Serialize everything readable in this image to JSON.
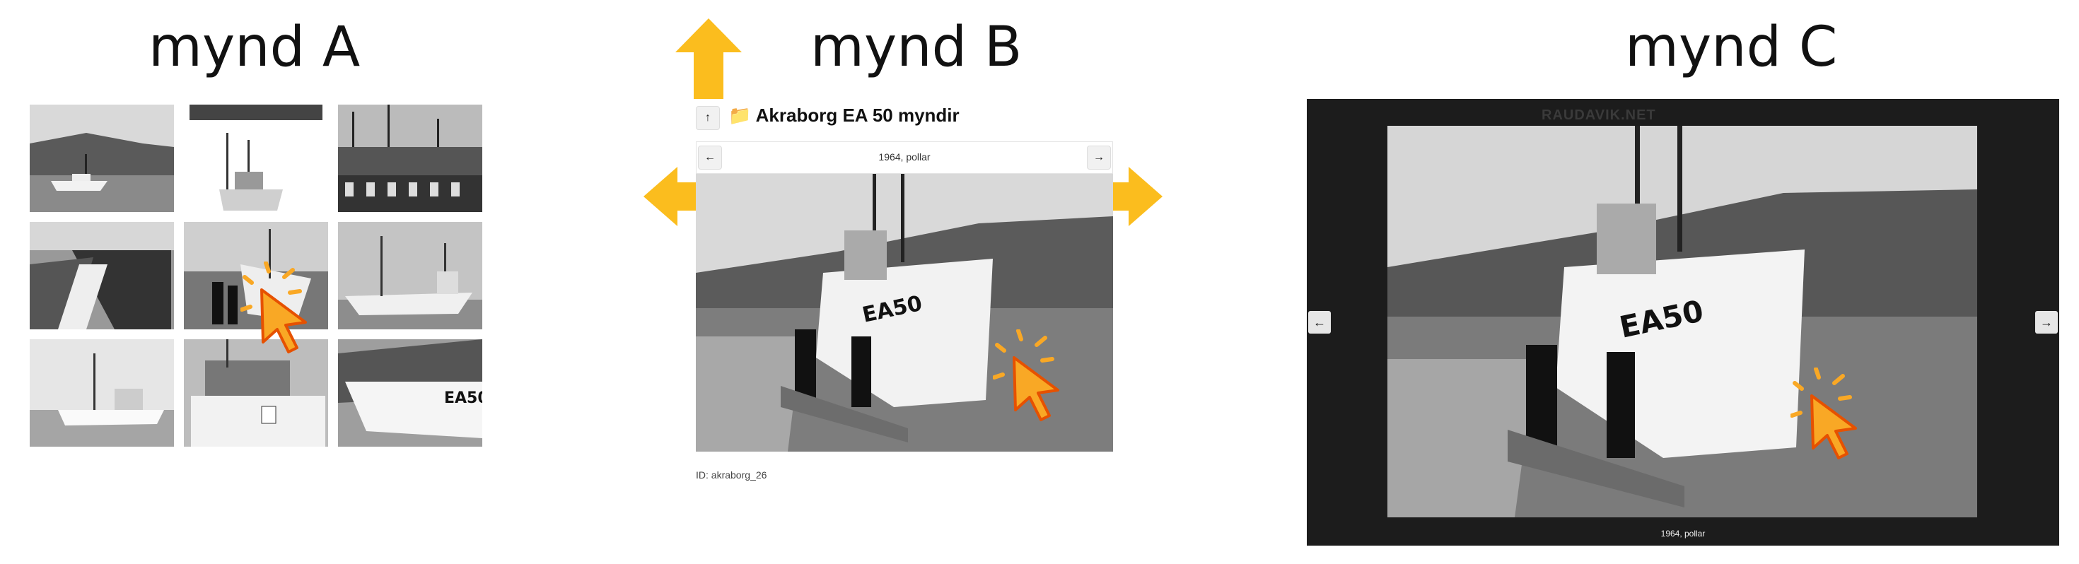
{
  "headings": {
    "a": "mynd A",
    "b": "mynd B",
    "c": "mynd C"
  },
  "panel_b": {
    "up_icon": "↑",
    "folder_icon": "📁",
    "title": "Akraborg EA 50 myndir",
    "prev_icon": "←",
    "next_icon": "→",
    "caption": "1964, pollar",
    "id_label": "ID: akraborg_26"
  },
  "panel_c": {
    "watermark": "RAUDAVIK.NET",
    "prev_icon": "←",
    "next_icon": "→",
    "caption": "1964, pollar"
  },
  "colors": {
    "arrow": "#fbbd1e",
    "cursor": "#f9a825",
    "cursor_outline": "#e65100",
    "viewer_bg": "#1c1c1c"
  },
  "boat_label": "EA50"
}
